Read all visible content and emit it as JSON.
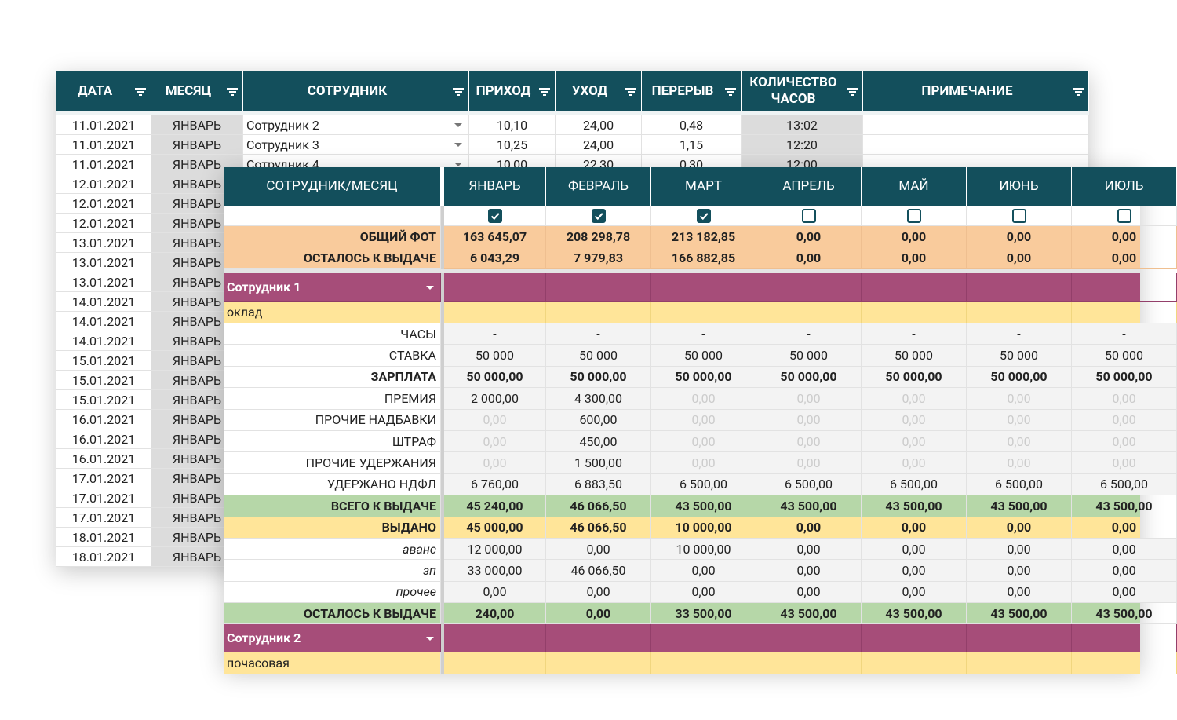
{
  "log": {
    "headers": [
      "ДАТА",
      "МЕСЯЦ",
      "СОТРУДНИК",
      "ПРИХОД",
      "УХОД",
      "ПЕРЕРЫВ",
      "КОЛИЧЕСТВО ЧАСОВ",
      "ПРИМЕЧАНИЕ"
    ],
    "rows": [
      [
        "11.01.2021",
        "ЯНВАРЬ",
        "Сотрудник 2",
        "10,10",
        "24,00",
        "0,48",
        "13:02"
      ],
      [
        "11.01.2021",
        "ЯНВАРЬ",
        "Сотрудник 3",
        "10,25",
        "24,00",
        "1,15",
        "12:20"
      ],
      [
        "11.01.2021",
        "ЯНВАРЬ",
        "Сотрудник 4",
        "10,00",
        "22,30",
        "0,30",
        "12:00"
      ],
      [
        "12.01.2021",
        "ЯНВАРЬ"
      ],
      [
        "12.01.2021",
        "ЯНВАРЬ"
      ],
      [
        "12.01.2021",
        "ЯНВАРЬ"
      ],
      [
        "13.01.2021",
        "ЯНВАРЬ"
      ],
      [
        "13.01.2021",
        "ЯНВАРЬ"
      ],
      [
        "13.01.2021",
        "ЯНВАРЬ"
      ],
      [
        "14.01.2021",
        "ЯНВАРЬ"
      ],
      [
        "14.01.2021",
        "ЯНВАРЬ"
      ],
      [
        "14.01.2021",
        "ЯНВАРЬ"
      ],
      [
        "15.01.2021",
        "ЯНВАРЬ"
      ],
      [
        "15.01.2021",
        "ЯНВАРЬ"
      ],
      [
        "15.01.2021",
        "ЯНВАРЬ"
      ],
      [
        "16.01.2021",
        "ЯНВАРЬ"
      ],
      [
        "16.01.2021",
        "ЯНВАРЬ"
      ],
      [
        "16.01.2021",
        "ЯНВАРЬ"
      ],
      [
        "17.01.2021",
        "ЯНВАРЬ"
      ],
      [
        "17.01.2021",
        "ЯНВАРЬ"
      ],
      [
        "17.01.2021",
        "ЯНВАРЬ"
      ],
      [
        "18.01.2021",
        "ЯНВАРЬ"
      ],
      [
        "18.01.2021",
        "ЯНВАРЬ"
      ]
    ]
  },
  "payroll": {
    "header_label": "СОТРУДНИК/МЕСЯЦ",
    "months": [
      "ЯНВАРЬ",
      "ФЕВРАЛЬ",
      "МАРТ",
      "АПРЕЛЬ",
      "МАЙ",
      "ИЮНЬ",
      "ИЮЛЬ"
    ],
    "paid_flags": [
      true,
      true,
      true,
      false,
      false,
      false,
      false
    ],
    "totals": [
      {
        "label": "ОБЩИЙ ФОТ",
        "values": [
          "163 645,07",
          "208 298,78",
          "213 182,85",
          "0,00",
          "0,00",
          "0,00",
          "0,00"
        ]
      },
      {
        "label": "ОСТАЛОСЬ К ВЫДАЧЕ",
        "values": [
          "6 043,29",
          "7 979,83",
          "166 882,85",
          "0,00",
          "0,00",
          "0,00",
          "0,00"
        ]
      }
    ],
    "employees": [
      {
        "name": "Сотрудник 1",
        "pay_type": "оклад",
        "rows": [
          {
            "label": "ЧАСЫ",
            "values": [
              "-",
              "-",
              "-",
              "-",
              "-",
              "-",
              "-"
            ]
          },
          {
            "label": "СТАВКА",
            "values": [
              "50 000",
              "50 000",
              "50 000",
              "50 000",
              "50 000",
              "50 000",
              "50 000"
            ]
          },
          {
            "label": "ЗАРПЛАТА",
            "values": [
              "50 000,00",
              "50 000,00",
              "50 000,00",
              "50 000,00",
              "50 000,00",
              "50 000,00",
              "50 000,00"
            ]
          },
          {
            "label": "ПРЕМИЯ",
            "values": [
              "2 000,00",
              "4 300,00",
              "0,00",
              "0,00",
              "0,00",
              "0,00",
              "0,00"
            ]
          },
          {
            "label": "ПРОЧИЕ НАДБАВКИ",
            "values": [
              "0,00",
              "600,00",
              "0,00",
              "0,00",
              "0,00",
              "0,00",
              "0,00"
            ]
          },
          {
            "label": "ШТРАФ",
            "values": [
              "0,00",
              "450,00",
              "0,00",
              "0,00",
              "0,00",
              "0,00",
              "0,00"
            ]
          },
          {
            "label": "ПРОЧИЕ УДЕРЖАНИЯ",
            "values": [
              "0,00",
              "1 500,00",
              "0,00",
              "0,00",
              "0,00",
              "0,00",
              "0,00"
            ]
          },
          {
            "label": "УДЕРЖАНО НДФЛ",
            "values": [
              "6 760,00",
              "6 883,50",
              "6 500,00",
              "6 500,00",
              "6 500,00",
              "6 500,00",
              "6 500,00"
            ]
          },
          {
            "label": "ВСЕГО К ВЫДАЧЕ",
            "values": [
              "45 240,00",
              "46 066,50",
              "43 500,00",
              "43 500,00",
              "43 500,00",
              "43 500,00",
              "43 500,00"
            ]
          },
          {
            "label": "ВЫДАНО",
            "values": [
              "45 000,00",
              "46 066,50",
              "10 000,00",
              "0,00",
              "0,00",
              "0,00",
              "0,00"
            ]
          },
          {
            "label": "аванс",
            "values": [
              "12 000,00",
              "0,00",
              "10 000,00",
              "0,00",
              "0,00",
              "0,00",
              "0,00"
            ]
          },
          {
            "label": "зп",
            "values": [
              "33 000,00",
              "46 066,50",
              "0,00",
              "0,00",
              "0,00",
              "0,00",
              "0,00"
            ]
          },
          {
            "label": "прочее",
            "values": [
              "0,00",
              "0,00",
              "0,00",
              "0,00",
              "0,00",
              "0,00",
              "0,00"
            ]
          },
          {
            "label": "ОСТАЛОСЬ К ВЫДАЧЕ",
            "values": [
              "240,00",
              "0,00",
              "33 500,00",
              "43 500,00",
              "43 500,00",
              "43 500,00",
              "43 500,00"
            ]
          }
        ]
      },
      {
        "name": "Сотрудник 2",
        "pay_type": "почасовая"
      }
    ]
  }
}
